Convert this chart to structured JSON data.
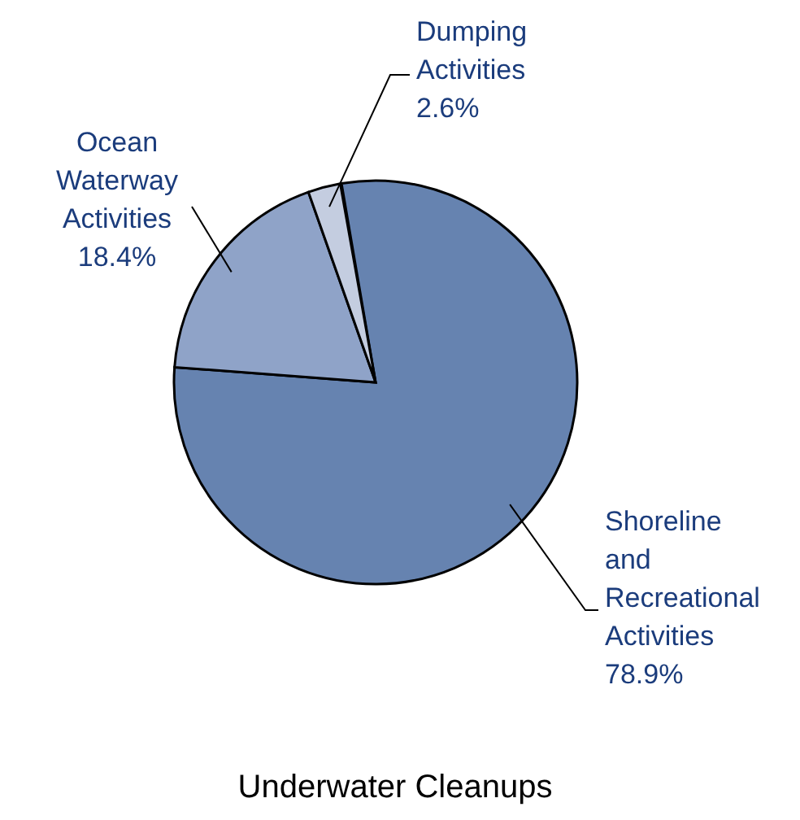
{
  "chart_data": {
    "type": "pie",
    "title": "Underwater Cleanups",
    "categories": [
      "Shoreline and Recreational Activities",
      "Ocean Waterway Activities",
      "Dumping Activities"
    ],
    "values": [
      78.9,
      18.4,
      2.6
    ],
    "colors": [
      "#6683b0",
      "#8fa3c8",
      "#c4cde0"
    ],
    "value_labels": [
      "78.9%",
      "18.4%",
      "2.6%"
    ]
  }
}
